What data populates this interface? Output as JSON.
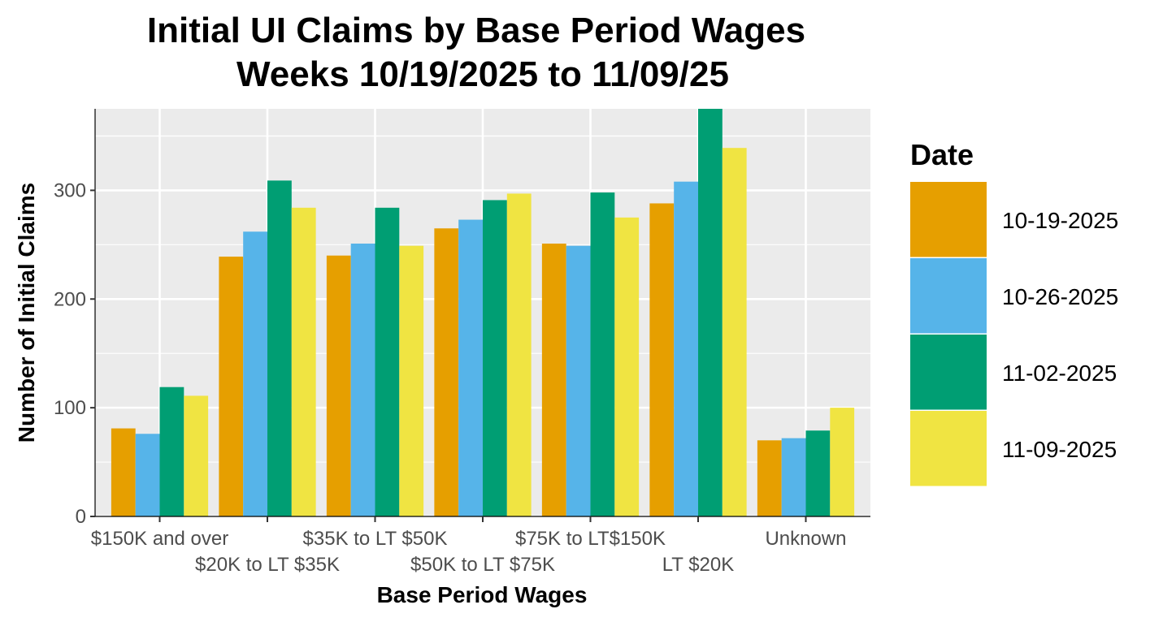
{
  "chart_data": {
    "type": "bar",
    "title": "Initial UI Claims by Base Period Wages",
    "subtitle": "Weeks 10/19/2025 to 11/09/25",
    "xlabel": "Base Period Wages",
    "ylabel": "Number of Initial Claims",
    "ylim": [
      0,
      375
    ],
    "yticks": [
      0,
      100,
      200,
      300
    ],
    "grid": true,
    "legend_title": "Date",
    "legend_position": "right",
    "categories": [
      "$150K and over",
      "$20K to LT $35K",
      "$35K to LT $50K",
      "$50K to LT $75K",
      "$75K to LT$150K",
      "LT $20K",
      "Unknown"
    ],
    "series": [
      {
        "name": "10-19-2025",
        "color": "#E69F00",
        "values": [
          81,
          239,
          240,
          265,
          251,
          288,
          70
        ]
      },
      {
        "name": "10-26-2025",
        "color": "#56B4E9",
        "values": [
          76,
          262,
          251,
          273,
          249,
          308,
          72
        ]
      },
      {
        "name": "11-02-2025",
        "color": "#009E73",
        "values": [
          119,
          309,
          284,
          291,
          298,
          375,
          79
        ]
      },
      {
        "name": "11-09-2025",
        "color": "#F0E442",
        "values": [
          111,
          284,
          249,
          297,
          275,
          339,
          100
        ]
      }
    ]
  }
}
